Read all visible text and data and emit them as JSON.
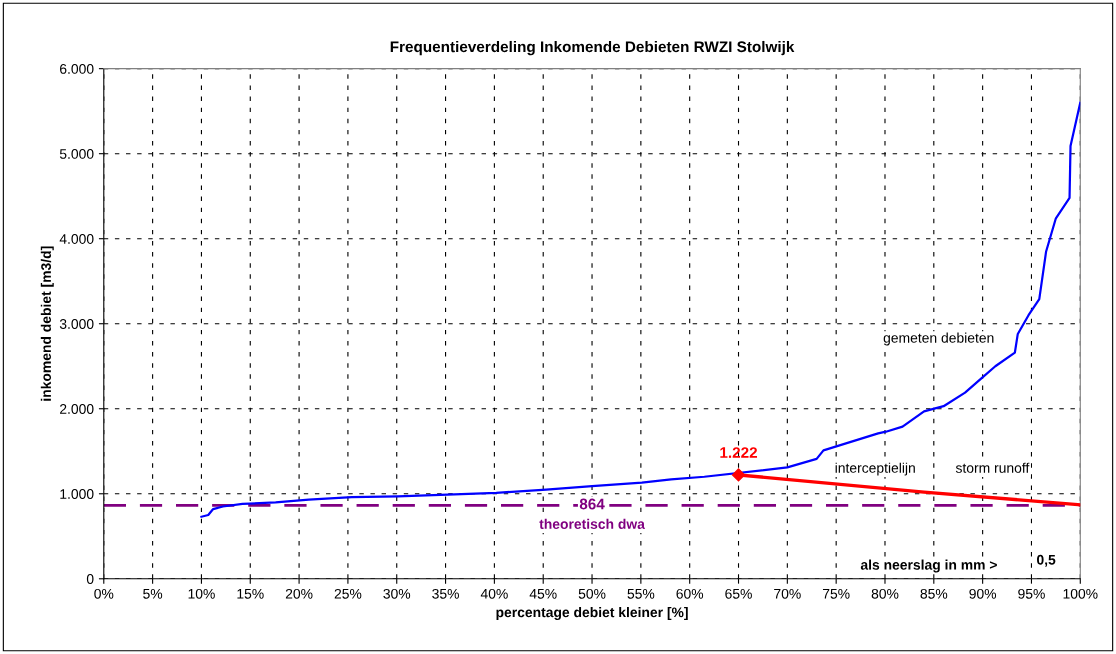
{
  "chart_data": {
    "type": "line",
    "title": "Frequentieverdeling Inkomende Debieten RWZI Stolwijk",
    "xlabel": "percentage debiet kleiner [%]",
    "ylabel": "inkomend debiet [m3/d]",
    "series": [
      {
        "color": "#0000ff",
        "x": [
          10.0,
          10.7,
          11.2,
          12.2,
          14.2,
          17.6,
          21.0,
          25.4,
          30.1,
          35.2,
          40.2,
          45.3,
          50.0,
          55.1,
          58.1,
          61.5,
          70,
          73,
          73.7,
          79.3,
          80.1,
          81.8,
          84.0,
          86.0,
          88.2,
          89.9,
          91.3,
          93.3,
          93.6,
          94.7,
          95.8,
          96.5,
          97.5,
          98.9,
          99.0,
          100
        ],
        "values": [
          730,
          750,
          820,
          850,
          880,
          900,
          930,
          960,
          970,
          990,
          1010,
          1050,
          1090,
          1130,
          1170,
          1200,
          1310,
          1410,
          1510,
          1710,
          1730,
          1790,
          1970,
          2030,
          2190,
          2360,
          2500,
          2660,
          2880,
          3100,
          3290,
          3850,
          4240,
          4480,
          5090,
          5600
        ]
      },
      {
        "color": "#ff0000",
        "x": [
          65,
          84,
          100
        ],
        "values": [
          1222,
          1020,
          870
        ]
      }
    ],
    "ref_lines": [
      {
        "axis": "y",
        "value": 864,
        "label": "864",
        "color": "#800080",
        "line_style": "dashed"
      }
    ],
    "annotations": [
      {
        "text": "1.222",
        "x": 65,
        "y": 1222
      },
      "gemeten debieten",
      "interceptielijn",
      "storm runoff",
      "theoretisch dwa",
      "als neerslag in mm >",
      "0,5"
    ],
    "xlim": [
      0,
      100
    ],
    "ylim": [
      0,
      6000
    ],
    "xticks": [
      {
        "value": 0,
        "label": "0%"
      },
      {
        "value": 5,
        "label": "5%"
      },
      {
        "value": 10,
        "label": "10%"
      },
      {
        "value": 15,
        "label": "15%"
      },
      {
        "value": 20,
        "label": "20%"
      },
      {
        "value": 25,
        "label": "25%"
      },
      {
        "value": 30,
        "label": "30%"
      },
      {
        "value": 35,
        "label": "35%"
      },
      {
        "value": 40,
        "label": "40%"
      },
      {
        "value": 45,
        "label": "45%"
      },
      {
        "value": 50,
        "label": "50%"
      },
      {
        "value": 55,
        "label": "55%"
      },
      {
        "value": 60,
        "label": "60%"
      },
      {
        "value": 65,
        "label": "65%"
      },
      {
        "value": 70,
        "label": "70%"
      },
      {
        "value": 75,
        "label": "75%"
      },
      {
        "value": 80,
        "label": "80%"
      },
      {
        "value": 85,
        "label": "85%"
      },
      {
        "value": 90,
        "label": "90%"
      },
      {
        "value": 95,
        "label": "95%"
      },
      {
        "value": 100,
        "label": "100%"
      }
    ],
    "yticks": [
      0,
      {
        "value": 1000,
        "label": "1.000"
      },
      {
        "value": 2000,
        "label": "2.000"
      },
      {
        "value": 3000,
        "label": "3.000"
      },
      {
        "value": 4000,
        "label": "4.000"
      },
      {
        "value": 5000,
        "label": "5.000"
      },
      {
        "value": 6000,
        "label": "6.000"
      }
    ],
    "grid": true
  }
}
